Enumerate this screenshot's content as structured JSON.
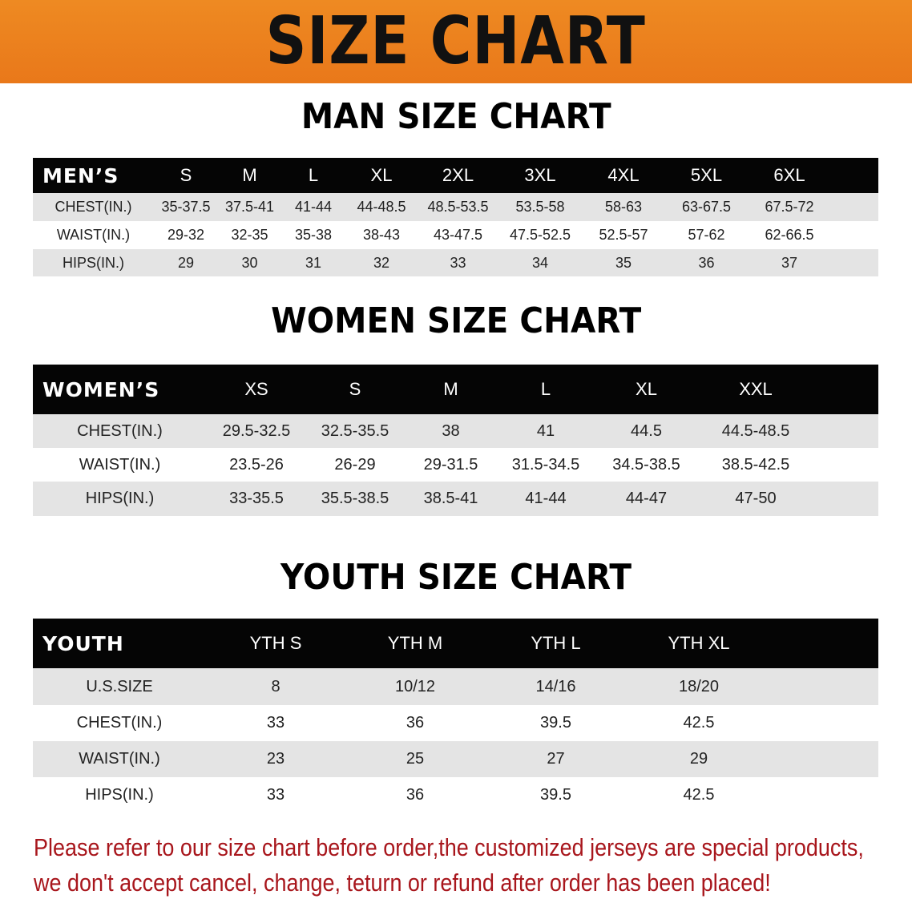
{
  "title": "SIZE CHART",
  "men": {
    "section_title": "MAN SIZE CHART",
    "header": [
      "MEN’S",
      "S",
      "M",
      "L",
      "XL",
      "2XL",
      "3XL",
      "4XL",
      "5XL",
      "6XL"
    ],
    "rows": [
      [
        "CHEST(IN.)",
        "35-37.5",
        "37.5-41",
        "41-44",
        "44-48.5",
        "48.5-53.5",
        "53.5-58",
        "58-63",
        "63-67.5",
        "67.5-72"
      ],
      [
        "WAIST(IN.)",
        "29-32",
        "32-35",
        "35-38",
        "38-43",
        "43-47.5",
        "47.5-52.5",
        "52.5-57",
        "57-62",
        "62-66.5"
      ],
      [
        "HIPS(IN.)",
        "29",
        "30",
        "31",
        "32",
        "33",
        "34",
        "35",
        "36",
        "37"
      ]
    ]
  },
  "women": {
    "section_title": "WOMEN SIZE CHART",
    "header": [
      "WOMEN’S",
      "XS",
      "S",
      "M",
      "L",
      "XL",
      "XXL"
    ],
    "rows": [
      [
        "CHEST(IN.)",
        "29.5-32.5",
        "32.5-35.5",
        "38",
        "41",
        "44.5",
        "44.5-48.5"
      ],
      [
        "WAIST(IN.)",
        "23.5-26",
        "26-29",
        "29-31.5",
        "31.5-34.5",
        "34.5-38.5",
        "38.5-42.5"
      ],
      [
        "HIPS(IN.)",
        "33-35.5",
        "35.5-38.5",
        "38.5-41",
        "41-44",
        "44-47",
        "47-50"
      ]
    ]
  },
  "youth": {
    "section_title": "YOUTH SIZE CHART",
    "header": [
      "YOUTH",
      "YTH S",
      "YTH M",
      "YTH L",
      "YTH XL"
    ],
    "rows": [
      [
        "U.S.SIZE",
        "8",
        "10/12",
        "14/16",
        "18/20"
      ],
      [
        "CHEST(IN.)",
        "33",
        "36",
        "39.5",
        "42.5"
      ],
      [
        "WAIST(IN.)",
        "23",
        "25",
        "27",
        "29"
      ],
      [
        "HIPS(IN.)",
        "33",
        "36",
        "39.5",
        "42.5"
      ]
    ]
  },
  "notice": [
    "Please refer to our size chart before order,the customized jerseys are special products,",
    "we don't accept cancel, change, teturn or refund after order has been placed!"
  ],
  "colors": {
    "banner": "#ec821e",
    "header_row": "#050505",
    "stripe": "#e4e4e4",
    "notice": "#a8161c"
  }
}
